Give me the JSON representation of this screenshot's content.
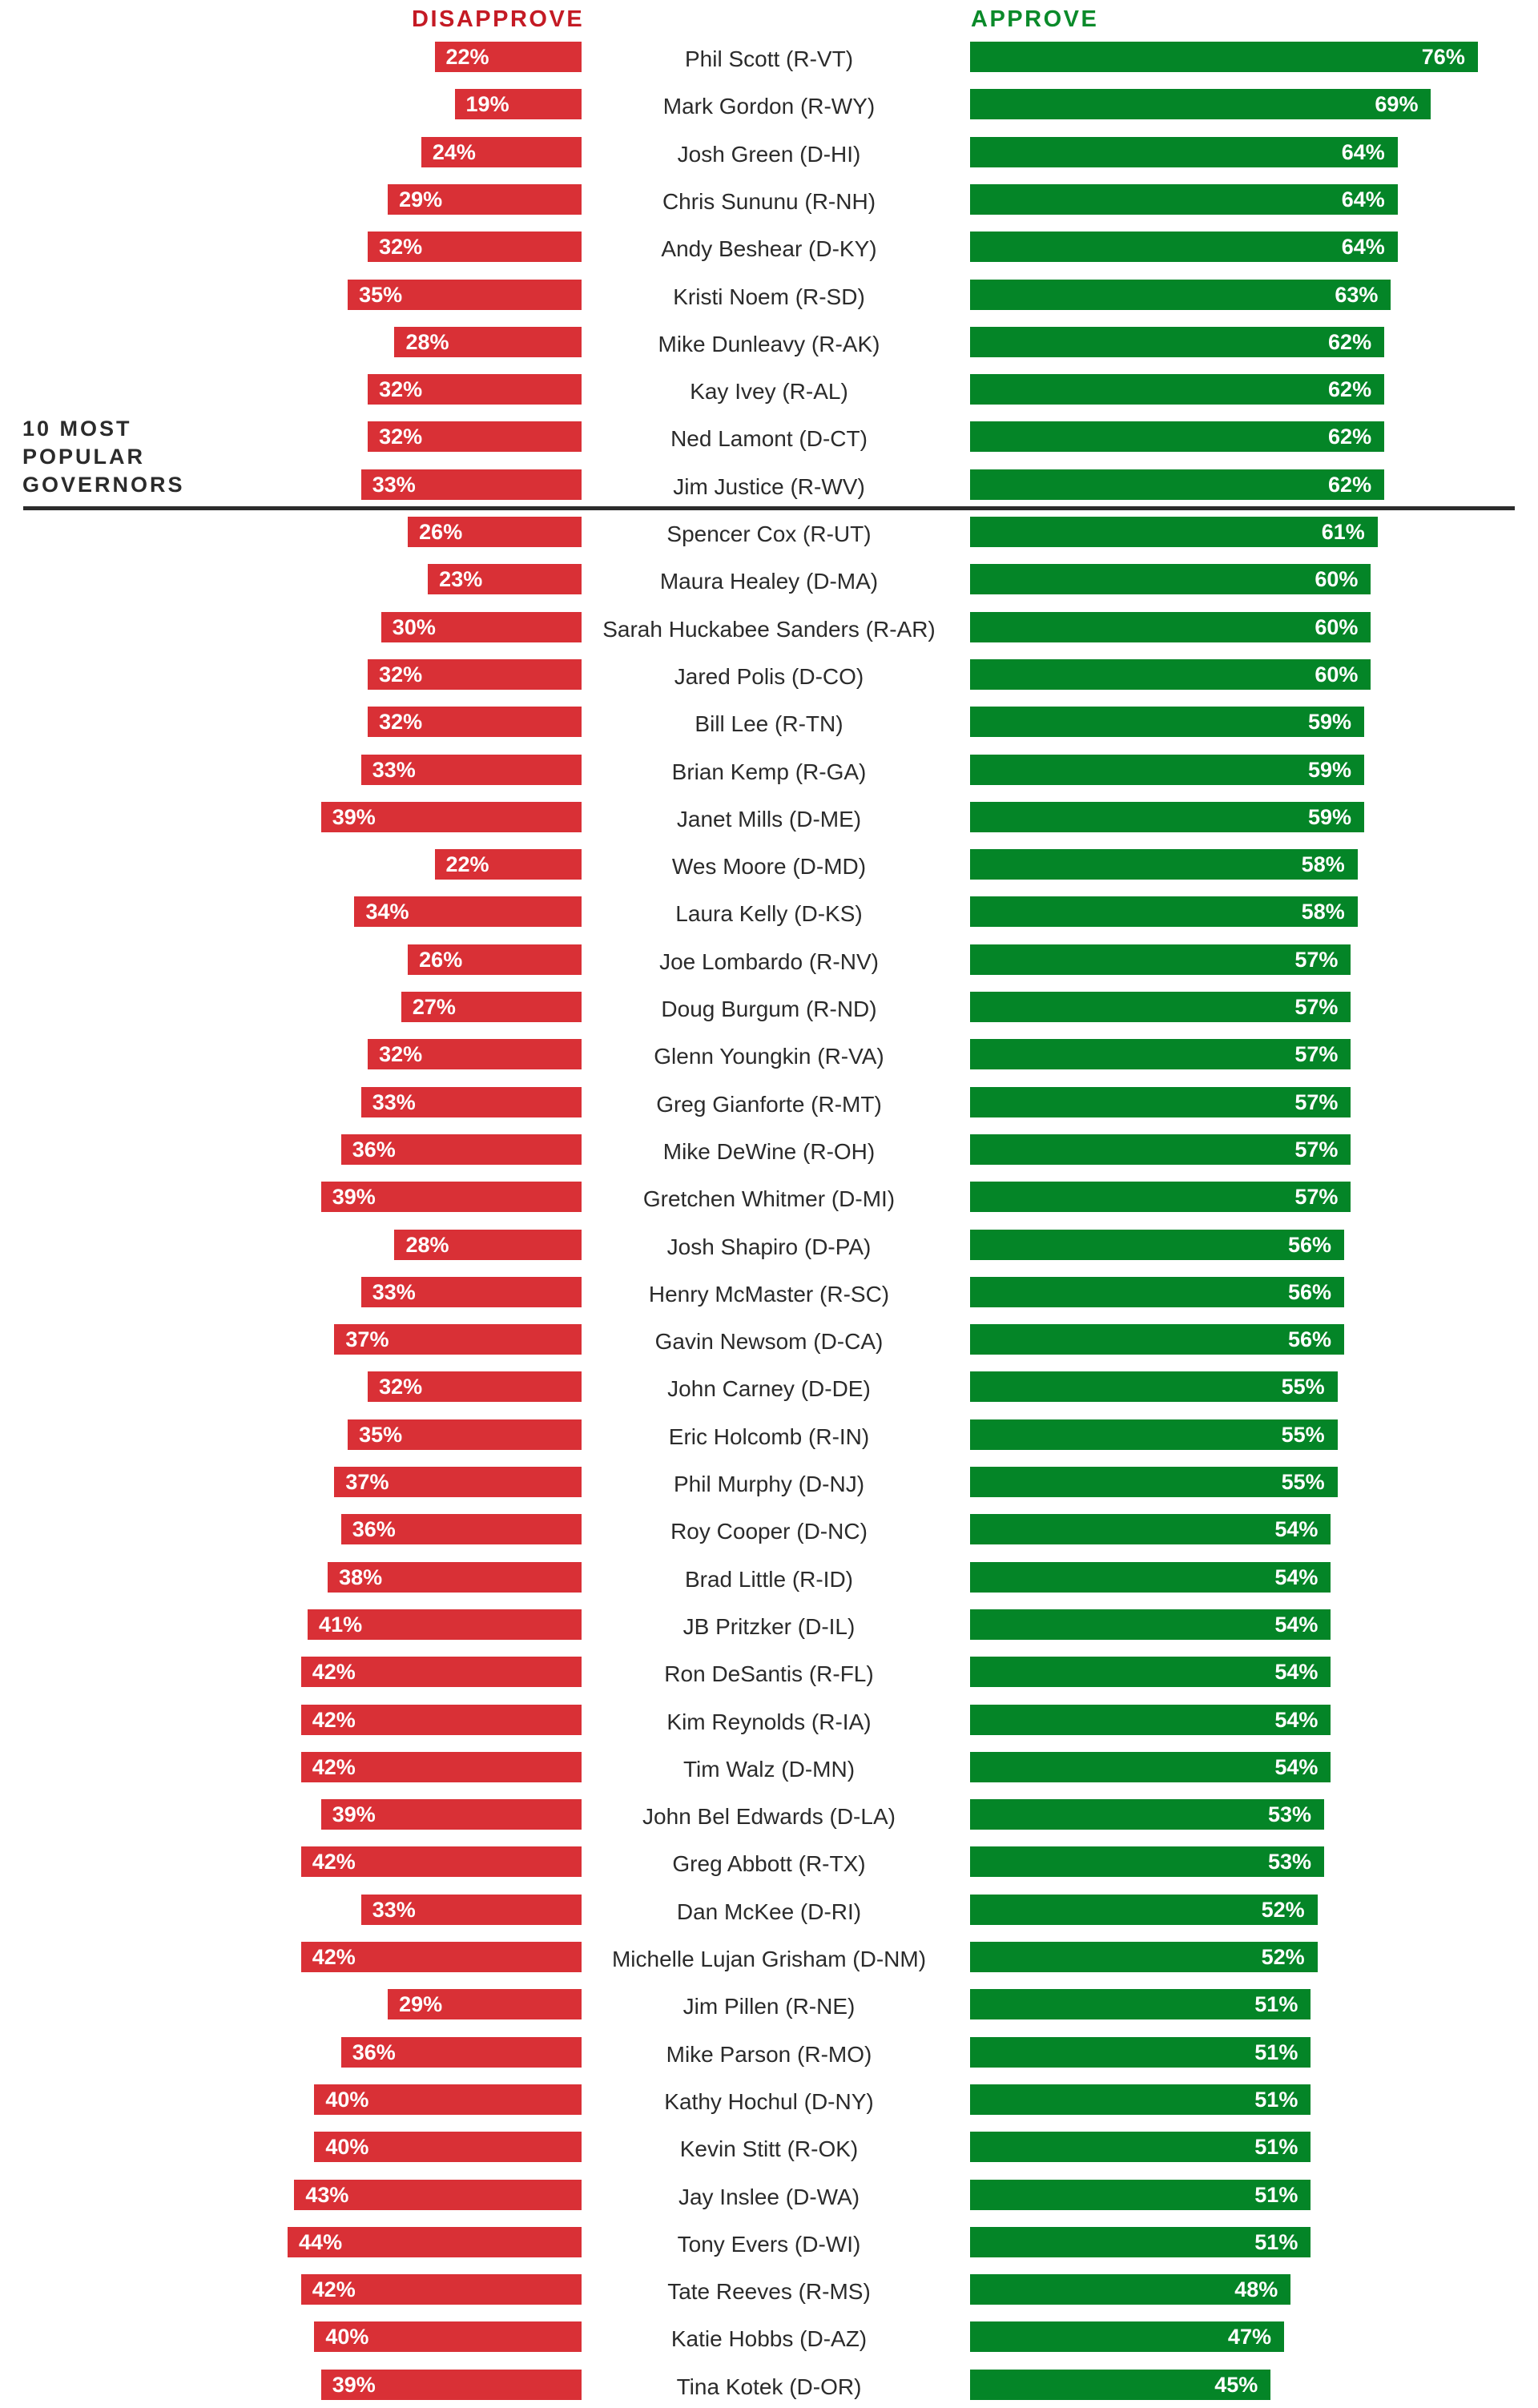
{
  "chart_data": {
    "type": "bar",
    "orientation": "horizontal-diverging",
    "title": "",
    "headers": {
      "disapprove": "DISAPPROVE",
      "approve": "APPROVE"
    },
    "group_label_lines": [
      "10 MOST",
      "POPULAR",
      "GOVERNORS"
    ],
    "group_size": 10,
    "colors": {
      "disapprove": "#d93036",
      "approve": "#048527",
      "disapprove_header": "#c41a24",
      "approve_header": "#0a8a2a",
      "text": "#2b2b2b"
    },
    "unit": "%",
    "xlim": [
      0,
      100
    ],
    "categories": [
      "Phil Scott (R-VT)",
      "Mark Gordon (R-WY)",
      "Josh Green (D-HI)",
      "Chris Sununu (R-NH)",
      "Andy Beshear (D-KY)",
      "Kristi Noem (R-SD)",
      "Mike Dunleavy (R-AK)",
      "Kay Ivey (R-AL)",
      "Ned Lamont (D-CT)",
      "Jim Justice (R-WV)",
      "Spencer Cox (R-UT)",
      "Maura Healey (D-MA)",
      "Sarah Huckabee Sanders (R-AR)",
      "Jared Polis (D-CO)",
      "Bill Lee (R-TN)",
      "Brian Kemp (R-GA)",
      "Janet Mills (D-ME)",
      "Wes Moore (D-MD)",
      "Laura Kelly (D-KS)",
      "Joe Lombardo (R-NV)",
      "Doug Burgum (R-ND)",
      "Glenn Youngkin (R-VA)",
      "Greg Gianforte (R-MT)",
      "Mike DeWine (R-OH)",
      "Gretchen Whitmer (D-MI)",
      "Josh Shapiro (D-PA)",
      "Henry McMaster (R-SC)",
      "Gavin Newsom (D-CA)",
      "John Carney (D-DE)",
      "Eric Holcomb (R-IN)",
      "Phil Murphy (D-NJ)",
      "Roy Cooper (D-NC)",
      "Brad Little (R-ID)",
      "JB Pritzker (D-IL)",
      "Ron DeSantis (R-FL)",
      "Kim Reynolds (R-IA)",
      "Tim Walz (D-MN)",
      "John Bel Edwards (D-LA)",
      "Greg Abbott (R-TX)",
      "Dan McKee (D-RI)",
      "Michelle Lujan Grisham (D-NM)",
      "Jim Pillen (R-NE)",
      "Mike Parson (R-MO)",
      "Kathy Hochul (D-NY)",
      "Kevin Stitt (R-OK)",
      "Jay Inslee (D-WA)",
      "Tony Evers (D-WI)",
      "Tate Reeves (R-MS)",
      "Katie Hobbs (D-AZ)",
      "Tina Kotek (D-OR)"
    ],
    "series": [
      {
        "name": "Disapprove",
        "values": [
          22,
          19,
          24,
          29,
          32,
          35,
          28,
          32,
          32,
          33,
          26,
          23,
          30,
          32,
          32,
          33,
          39,
          22,
          34,
          26,
          27,
          32,
          33,
          36,
          39,
          28,
          33,
          37,
          32,
          35,
          37,
          36,
          38,
          41,
          42,
          42,
          42,
          39,
          42,
          33,
          42,
          29,
          36,
          40,
          40,
          43,
          44,
          42,
          40,
          39
        ]
      },
      {
        "name": "Approve",
        "values": [
          76,
          69,
          64,
          64,
          64,
          63,
          62,
          62,
          62,
          62,
          61,
          60,
          60,
          60,
          59,
          59,
          59,
          58,
          58,
          57,
          57,
          57,
          57,
          57,
          57,
          56,
          56,
          56,
          55,
          55,
          55,
          54,
          54,
          54,
          54,
          54,
          54,
          53,
          53,
          52,
          52,
          51,
          51,
          51,
          51,
          51,
          51,
          48,
          47,
          45
        ]
      }
    ]
  }
}
